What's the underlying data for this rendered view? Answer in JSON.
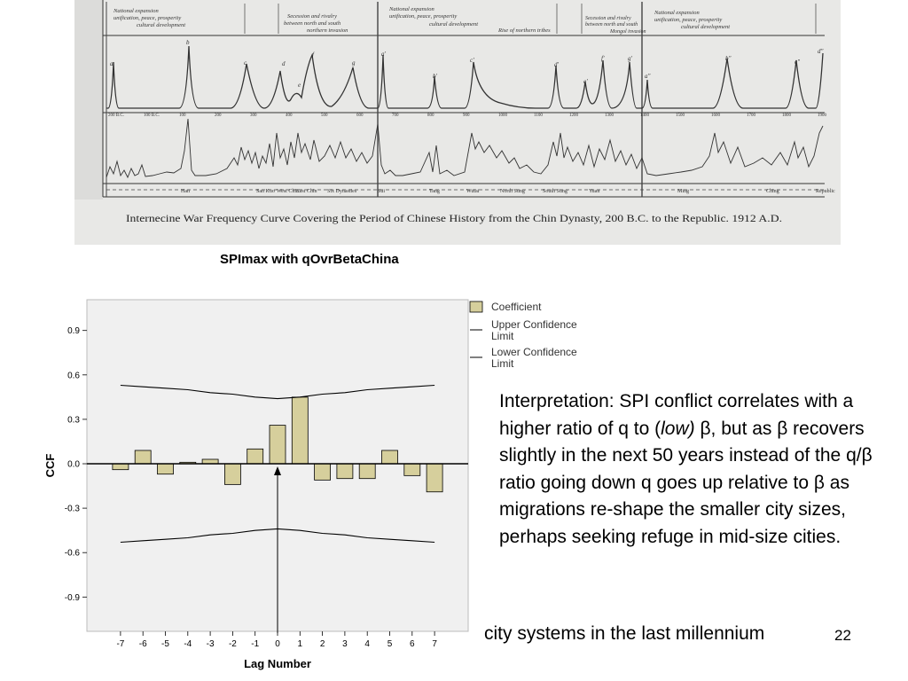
{
  "scan": {
    "caption": "Internecine War Frequency Curve Covering the Period of Chinese History from the Chin Dynasty, 200 B.C. to the Republic. 1912 A.D.",
    "phase_notes": [
      "National expansion",
      "unification, peace, prosperity",
      "cultural development",
      "Secession and rivalry",
      "between north and south",
      "northern invasion",
      "Rise of northern tribes",
      "Secession and rivalry",
      "between north and south",
      "Mongol invasion",
      "National expansion",
      "unification, peace, prosperity",
      "cultural development"
    ],
    "peak_letters": [
      "a",
      "b",
      "c",
      "d",
      "e",
      "f",
      "g",
      "a'",
      "b'",
      "c'",
      "d'",
      "e'",
      "f'",
      "g'",
      "a\"",
      "b\"",
      "c\"",
      "d\""
    ],
    "dynasty_labels": [
      "Han",
      "San Kuo",
      "West Chin",
      "East Chin",
      "Six Dynasties",
      "Sui",
      "Tang",
      "Wutai",
      "North Sung",
      "South Sung",
      "Yuan",
      "Ming",
      "Ching",
      "Republic"
    ],
    "year_labels": [
      "200 B.C.",
      "100 B.C.",
      "100",
      "200",
      "300",
      "400",
      "500",
      "600",
      "700",
      "800",
      "900",
      "1000",
      "1100",
      "1200",
      "1300",
      "1400",
      "1500",
      "1600",
      "1700",
      "1800",
      "1900"
    ]
  },
  "chart_title": "SPImax with qOvrBetaChina",
  "chart_data": {
    "type": "bar",
    "title": "SPImax with qOvrBetaChina",
    "xlabel": "Lag Number",
    "ylabel": "CCF",
    "categories": [
      "-7",
      "-6",
      "-5",
      "-4",
      "-3",
      "-2",
      "-1",
      "0",
      "1",
      "2",
      "3",
      "4",
      "5",
      "6",
      "7"
    ],
    "series": [
      {
        "name": "Coefficient",
        "values": [
          -0.04,
          0.09,
          -0.07,
          0.01,
          0.03,
          -0.14,
          0.1,
          0.26,
          0.45,
          -0.11,
          -0.1,
          -0.1,
          0.09,
          -0.08,
          -0.19
        ]
      },
      {
        "name": "Upper Confidence Limit",
        "values": [
          0.53,
          0.52,
          0.51,
          0.5,
          0.48,
          0.47,
          0.45,
          0.44,
          0.45,
          0.47,
          0.48,
          0.5,
          0.51,
          0.52,
          0.53
        ]
      },
      {
        "name": "Lower Confidence Limit",
        "values": [
          -0.53,
          -0.52,
          -0.51,
          -0.5,
          -0.48,
          -0.47,
          -0.45,
          -0.44,
          -0.45,
          -0.47,
          -0.48,
          -0.5,
          -0.51,
          -0.52,
          -0.53
        ]
      }
    ],
    "yticks": [
      "0.9",
      "0.6",
      "0.3",
      "0.0",
      "-0.3",
      "-0.6",
      "-0.9"
    ],
    "ylim": [
      -1.05,
      1.1
    ],
    "grid": false,
    "legend": "right",
    "legend_upper_lines": [
      "Upper Confidence",
      "Limit"
    ],
    "legend_lower_lines": [
      "Lower Confidence",
      "Limit"
    ],
    "colors": {
      "bar": "#d6cf9c",
      "plot_bg": "#f0f0f0",
      "line": "#000000"
    }
  },
  "interpretation": {
    "text_before": "Interpretation: SPI conflict correlates with a higher ratio of q to (",
    "emphasis": "low)",
    "text_after": " β, but as β recovers slightly in the next 50 years instead of the q/β ratio going down q goes up relative to β as migrations re-shape the smaller city sizes, perhaps seeking refuge in mid-size cities."
  },
  "footer": "city systems in the last millennium",
  "slide_number": "22"
}
